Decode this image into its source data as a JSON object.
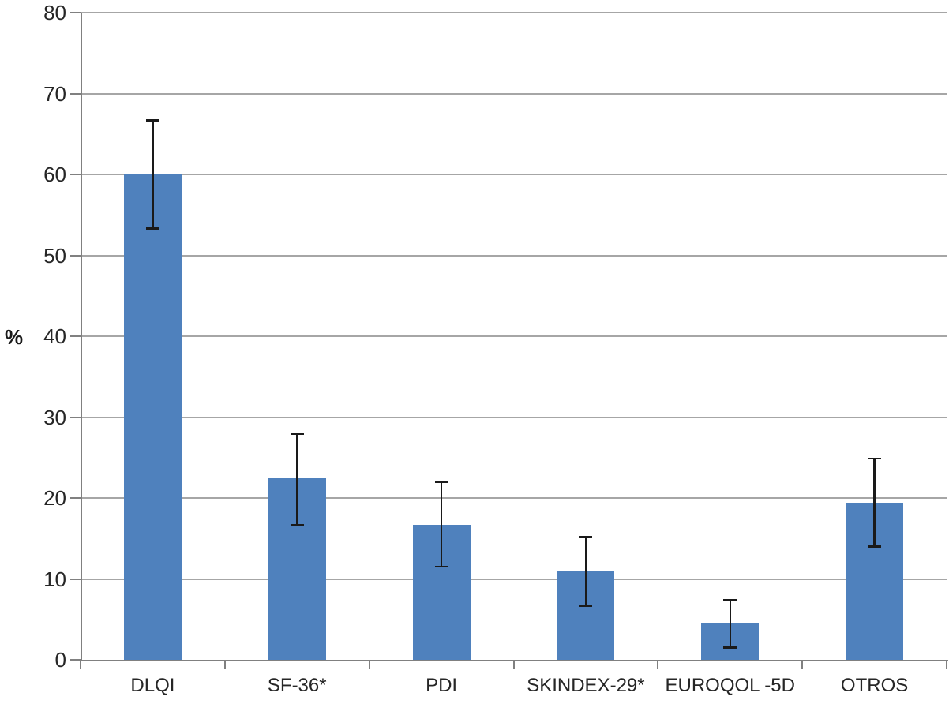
{
  "chart_data": {
    "type": "bar",
    "title": "",
    "xlabel": "",
    "ylabel": "%",
    "ylim": [
      0,
      80
    ],
    "yticks": [
      0,
      10,
      20,
      30,
      40,
      50,
      60,
      70,
      80
    ],
    "grid": true,
    "legend": null,
    "categories": [
      "DLQI",
      "SF-36*",
      "PDI",
      "SKINDEX-29*",
      "EUROQOL -5D",
      "OTROS"
    ],
    "values": [
      60.0,
      22.4,
      16.7,
      10.9,
      4.5,
      19.4
    ],
    "error_bars": {
      "mode": "absolute",
      "low": [
        53.3,
        16.6,
        11.5,
        6.6,
        1.5,
        14.0
      ],
      "high": [
        66.7,
        28.0,
        22.0,
        15.2,
        7.4,
        24.9
      ]
    },
    "colors": {
      "bar": "#4f81bd",
      "gridline": "#a6a6a6",
      "axis": "#808080",
      "text": "#262626",
      "error_bar": "#1a1a1a",
      "background": "#ffffff"
    }
  }
}
